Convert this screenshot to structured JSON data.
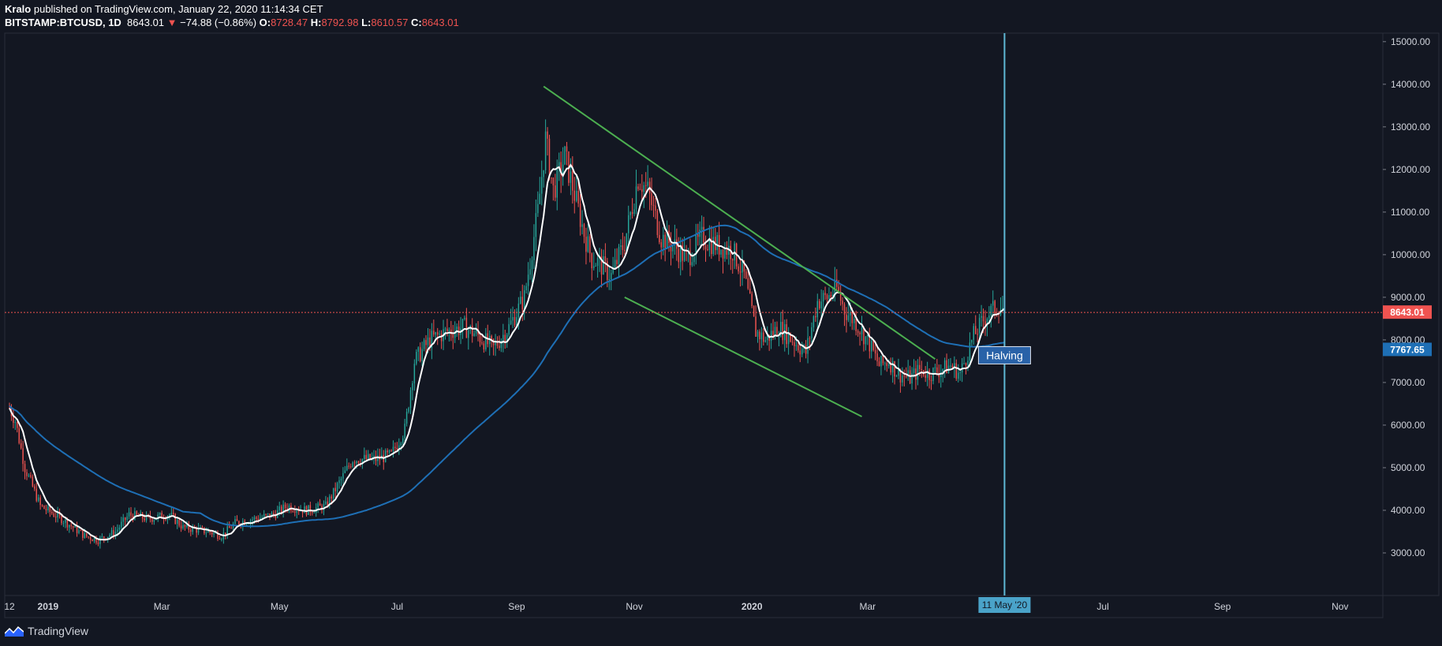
{
  "header": {
    "author": "Kralo",
    "published_text": "published on TradingView.com, January 22, 2020 11:14:34 CET",
    "symbol": "BITSTAMP:BTCUSD, 1D",
    "last": "8643.01",
    "change": "−74.88 (−0.86%)",
    "o_label": "O:",
    "o_value": "8728.47",
    "h_label": "H:",
    "h_value": "8792.98",
    "l_label": "L:",
    "l_value": "8610.57",
    "c_label": "C:",
    "c_value": "8643.01"
  },
  "footer": {
    "brand": "TradingView"
  },
  "colors": {
    "background": "#131722",
    "up": "#26a69a",
    "down": "#ef5350",
    "ma_fast": "#ffffff",
    "ma_slow": "#1e6fb5",
    "trendline": "#4caf50",
    "halving_line": "#5fb9d6",
    "price_tag": "#ef5350",
    "ma_tag": "#1e6fb5"
  },
  "chart_data": {
    "type": "candlestick",
    "interval": "1D",
    "x_range": [
      "2018-12-12",
      "2020-11-15"
    ],
    "ylim": [
      2000,
      15200
    ],
    "y_ticks": [
      "15000.00",
      "14000.00",
      "13000.00",
      "12000.00",
      "11000.00",
      "10000.00",
      "9000.00",
      "8000.00",
      "7000.00",
      "6000.00",
      "5000.00",
      "4000.00",
      "3000.00"
    ],
    "x_ticks": [
      {
        "label": "12",
        "date": "2018-12-12"
      },
      {
        "label": "2019",
        "date": "2019-01-01"
      },
      {
        "label": "Mar",
        "date": "2019-03-01"
      },
      {
        "label": "May",
        "date": "2019-05-01"
      },
      {
        "label": "Jul",
        "date": "2019-07-01"
      },
      {
        "label": "Sep",
        "date": "2019-09-01"
      },
      {
        "label": "Nov",
        "date": "2019-11-01"
      },
      {
        "label": "2020",
        "date": "2020-01-01"
      },
      {
        "label": "Mar",
        "date": "2020-03-01"
      },
      {
        "label": "Jul",
        "date": "2020-07-01"
      },
      {
        "label": "Sep",
        "date": "2020-09-01"
      },
      {
        "label": "Nov",
        "date": "2020-11-01"
      }
    ],
    "price_path": [
      [
        "2018-12-12",
        6400
      ],
      [
        "2018-12-15",
        6100
      ],
      [
        "2018-12-20",
        5000
      ],
      [
        "2018-12-28",
        4100
      ],
      [
        "2019-01-08",
        3800
      ],
      [
        "2019-01-20",
        3400
      ],
      [
        "2019-01-27",
        3300
      ],
      [
        "2019-02-05",
        3500
      ],
      [
        "2019-02-12",
        3900
      ],
      [
        "2019-02-22",
        3800
      ],
      [
        "2019-03-05",
        3900
      ],
      [
        "2019-03-12",
        3600
      ],
      [
        "2019-03-25",
        3500
      ],
      [
        "2019-04-01",
        3400
      ],
      [
        "2019-04-08",
        3700
      ],
      [
        "2019-04-18",
        3800
      ],
      [
        "2019-04-28",
        3900
      ],
      [
        "2019-05-05",
        4100
      ],
      [
        "2019-05-15",
        4000
      ],
      [
        "2019-05-25",
        4100
      ],
      [
        "2019-06-08",
        5200
      ],
      [
        "2019-06-20",
        5200
      ],
      [
        "2019-06-28",
        5300
      ],
      [
        "2019-07-05",
        5900
      ],
      [
        "2019-07-10",
        7500
      ],
      [
        "2019-07-18",
        8000
      ],
      [
        "2019-07-27",
        8200
      ],
      [
        "2019-08-05",
        8300
      ],
      [
        "2019-08-12",
        8100
      ],
      [
        "2019-08-20",
        7800
      ],
      [
        "2019-08-28",
        8300
      ],
      [
        "2019-09-05",
        9000
      ],
      [
        "2019-09-12",
        11000
      ],
      [
        "2019-09-16",
        12700
      ],
      [
        "2019-09-20",
        11500
      ],
      [
        "2019-09-26",
        12300
      ],
      [
        "2019-09-30",
        11600
      ],
      [
        "2019-10-06",
        10500
      ],
      [
        "2019-10-10",
        9900
      ],
      [
        "2019-10-14",
        9800
      ],
      [
        "2019-10-20",
        9500
      ],
      [
        "2019-10-27",
        10300
      ],
      [
        "2019-11-03",
        11800
      ],
      [
        "2019-11-08",
        11500
      ],
      [
        "2019-11-15",
        10400
      ],
      [
        "2019-11-22",
        10200
      ],
      [
        "2019-11-28",
        9900
      ],
      [
        "2019-12-06",
        10400
      ],
      [
        "2019-12-15",
        10200
      ],
      [
        "2019-12-22",
        10100
      ],
      [
        "2019-12-28",
        9500
      ],
      [
        "2020-01-03",
        8200
      ],
      [
        "2020-01-08",
        8000
      ],
      [
        "2020-01-15",
        8300
      ],
      [
        "2020-01-22",
        8000
      ],
      [
        "2020-01-29",
        7700
      ],
      [
        "2020-02-04",
        8900
      ],
      [
        "2020-02-09",
        9000
      ],
      [
        "2020-02-14",
        9200
      ],
      [
        "2020-02-18",
        8700
      ],
      [
        "2020-02-24",
        8400
      ],
      [
        "2020-03-02",
        7900
      ],
      [
        "2020-03-07",
        7400
      ],
      [
        "2020-03-12",
        7500
      ],
      [
        "2020-03-17",
        7200
      ],
      [
        "2020-03-23",
        7100
      ],
      [
        "2020-03-28",
        7300
      ],
      [
        "2020-04-02",
        7200
      ],
      [
        "2020-04-08",
        7300
      ],
      [
        "2020-04-13",
        7400
      ],
      [
        "2020-04-18",
        7200
      ],
      [
        "2020-04-25",
        8100
      ],
      [
        "2020-05-02",
        8600
      ],
      [
        "2020-05-08",
        8800
      ],
      [
        "2020-05-11",
        8700
      ]
    ],
    "price_tag": {
      "label": "8643.01",
      "value": 8643.01
    },
    "ma_tag": {
      "label": "7767.65",
      "value": 7767.65
    },
    "annotations": {
      "halving_label": "Halving",
      "halving_date_label": "11 May '20"
    }
  }
}
